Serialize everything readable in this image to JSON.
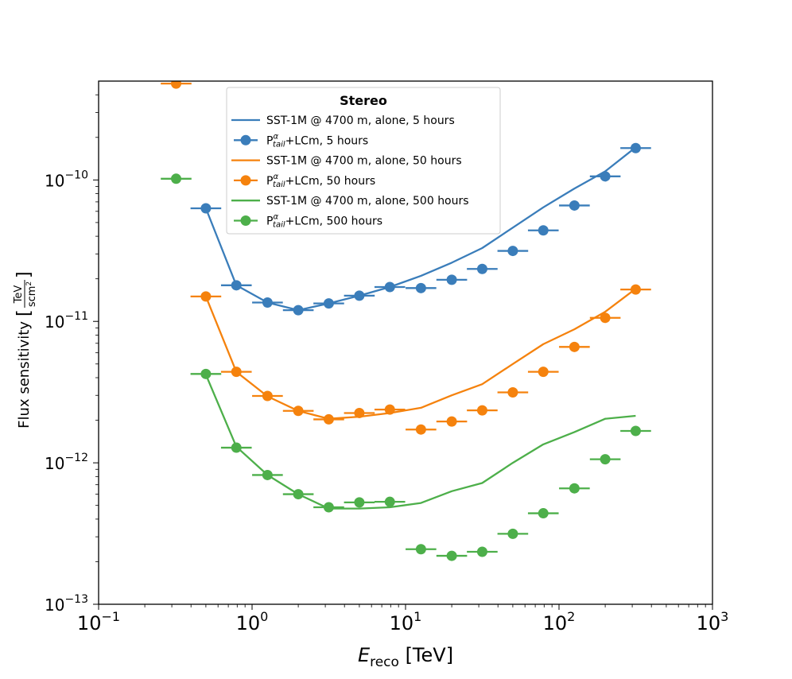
{
  "chart_data": {
    "type": "scatter",
    "xscale": "log",
    "yscale": "log",
    "xlim": [
      0.1,
      1000
    ],
    "ylim": [
      1e-13,
      5e-10
    ],
    "xlabel": {
      "sym": "E",
      "sub": "reco",
      "unit": " [TeV]"
    },
    "ylabel": {
      "prefix": "Flux sensitivity",
      "num": "TeV",
      "den": "scm",
      "den_sup": "2"
    },
    "x_ticks": [
      {
        "value": 0.1,
        "base": "10",
        "exp": "−1"
      },
      {
        "value": 1,
        "base": "10",
        "exp": "0"
      },
      {
        "value": 10,
        "base": "10",
        "exp": "1"
      },
      {
        "value": 100,
        "base": "10",
        "exp": "2"
      },
      {
        "value": 1000,
        "base": "10",
        "exp": "3"
      }
    ],
    "y_ticks": [
      {
        "value": 1e-13,
        "base": "10",
        "exp": "−13"
      },
      {
        "value": 1e-12,
        "base": "10",
        "exp": "−12"
      },
      {
        "value": 1e-11,
        "base": "10",
        "exp": "−11"
      },
      {
        "value": 1e-10,
        "base": "10",
        "exp": "−10"
      }
    ],
    "legend": {
      "title": "Stereo",
      "position": "upper-center",
      "entries": [
        {
          "kind": "line",
          "series": 0,
          "label": "SST-1M @ 4700 m, alone, 5 hours"
        },
        {
          "kind": "marker",
          "series": 0,
          "base": "P",
          "sup": "α",
          "sub": "tail",
          "rest": "+LCm, 5 hours"
        },
        {
          "kind": "line",
          "series": 1,
          "label": "SST-1M @ 4700 m, alone, 50 hours"
        },
        {
          "kind": "marker",
          "series": 1,
          "base": "P",
          "sup": "α",
          "sub": "tail",
          "rest": "+LCm, 50 hours"
        },
        {
          "kind": "line",
          "series": 2,
          "label": "SST-1M @ 4700 m, alone, 500 hours"
        },
        {
          "kind": "marker",
          "series": 2,
          "base": "P",
          "sup": "α",
          "sub": "tail",
          "rest": "+LCm, 500 hours"
        }
      ]
    },
    "series": [
      {
        "name": "5 hours",
        "color": "#3a7dba",
        "line": {
          "x": [
            0.5,
            0.79,
            1.26,
            2.0,
            3.16,
            5.0,
            7.9,
            12.6,
            20,
            31.6,
            50,
            79,
            126,
            200,
            316
          ],
          "y": [
            6.3e-11,
            1.8e-11,
            1.36e-11,
            1.2e-11,
            1.34e-11,
            1.52e-11,
            1.75e-11,
            2.1e-11,
            2.6e-11,
            3.3e-11,
            4.6e-11,
            6.4e-11,
            8.7e-11,
            1.15e-10,
            1.7e-10
          ]
        },
        "points": {
          "x": [
            0.5,
            0.79,
            1.26,
            2.0,
            3.16,
            5.0,
            7.9,
            12.6,
            20,
            31.6,
            50,
            79,
            126,
            200,
            316
          ],
          "y": [
            6.3e-11,
            1.8e-11,
            1.36e-11,
            1.2e-11,
            1.34e-11,
            1.52e-11,
            1.75e-11,
            1.72e-11,
            1.97e-11,
            2.35e-11,
            3.15e-11,
            4.4e-11,
            6.6e-11,
            1.06e-10,
            1.68e-10
          ]
        }
      },
      {
        "name": "50 hours",
        "color": "#f5820d",
        "line": {
          "x": [
            0.5,
            0.79,
            1.26,
            2.0,
            3.16,
            5.0,
            7.9,
            12.6,
            20,
            31.6,
            50,
            79,
            126,
            200,
            316
          ],
          "y": [
            1.5e-11,
            4.4e-12,
            2.95e-12,
            2.33e-12,
            2.05e-12,
            2.12e-12,
            2.25e-12,
            2.45e-12,
            3e-12,
            3.6e-12,
            5e-12,
            6.9e-12,
            8.8e-12,
            1.17e-11,
            1.7e-11
          ]
        },
        "points": {
          "x": [
            0.32,
            0.5,
            0.79,
            1.26,
            2.0,
            3.16,
            5.0,
            7.9,
            12.6,
            20,
            31.6,
            50,
            79,
            126,
            200,
            316
          ],
          "y": [
            4.8e-10,
            1.5e-11,
            4.4e-12,
            2.97e-12,
            2.33e-12,
            2.03e-12,
            2.25e-12,
            2.38e-12,
            1.72e-12,
            1.96e-12,
            2.35e-12,
            3.15e-12,
            4.4e-12,
            6.6e-12,
            1.06e-11,
            1.68e-11
          ]
        }
      },
      {
        "name": "500 hours",
        "color": "#4daf4a",
        "line": {
          "x": [
            0.5,
            0.79,
            1.26,
            2.0,
            3.16,
            5.0,
            7.9,
            12.6,
            20,
            31.6,
            50,
            79,
            126,
            200,
            316
          ],
          "y": [
            4.2e-12,
            1.3e-12,
            8.2e-13,
            6e-13,
            4.75e-13,
            4.75e-13,
            4.85e-13,
            5.2e-13,
            6.3e-13,
            7.2e-13,
            1e-12,
            1.35e-12,
            1.65e-12,
            2.05e-12,
            2.15e-12
          ]
        },
        "points": {
          "x": [
            0.32,
            0.5,
            0.79,
            1.26,
            2.0,
            3.16,
            5.0,
            7.9,
            12.6,
            20,
            31.6,
            50,
            79,
            126,
            200,
            316
          ],
          "y": [
            1.02e-10,
            4.25e-12,
            1.28e-12,
            8.2e-13,
            6e-13,
            4.85e-13,
            5.25e-13,
            5.3e-13,
            2.45e-13,
            2.2e-13,
            2.35e-13,
            3.15e-13,
            4.4e-13,
            6.6e-13,
            1.06e-12,
            1.68e-12
          ]
        }
      }
    ]
  }
}
